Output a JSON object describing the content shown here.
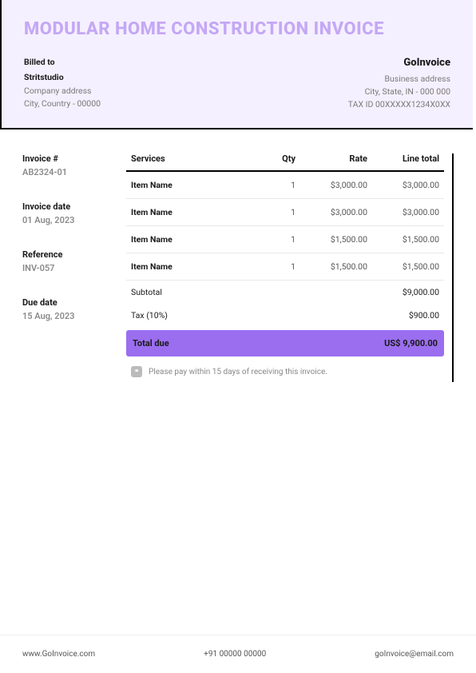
{
  "colors": {
    "header_bg": "#f5f0ff",
    "title_color": "#c4a8f5",
    "accent": "#9b6ef0",
    "text": "#1a1a1a",
    "muted": "#7a7a7a",
    "border": "#000000",
    "row_border": "#e8e8e8"
  },
  "title": "MODULAR HOME CONSTRUCTION INVOICE",
  "billed_to": {
    "label": "Billed to",
    "name": "Stritstudio",
    "address": "Company address",
    "city": "City, Country - 00000"
  },
  "from": {
    "name": "GoInvoice",
    "address": "Business address",
    "city": "City, State, IN - 000 000",
    "tax": "TAX ID 00XXXXX1234X0XX"
  },
  "meta": {
    "invoice_number": {
      "label": "Invoice #",
      "value": "AB2324-01"
    },
    "invoice_date": {
      "label": "Invoice date",
      "value": "01 Aug, 2023"
    },
    "reference": {
      "label": "Reference",
      "value": "INV-057"
    },
    "due_date": {
      "label": "Due date",
      "value": "15 Aug, 2023"
    }
  },
  "table": {
    "headers": {
      "services": "Services",
      "qty": "Qty",
      "rate": "Rate",
      "line_total": "Line total"
    },
    "rows": [
      {
        "service": "Item Name",
        "qty": "1",
        "rate": "$3,000.00",
        "line_total": "$3,000.00"
      },
      {
        "service": "Item Name",
        "qty": "1",
        "rate": "$3,000.00",
        "line_total": "$3,000.00"
      },
      {
        "service": "Item Name",
        "qty": "1",
        "rate": "$1,500.00",
        "line_total": "$1,500.00"
      },
      {
        "service": "Item Name",
        "qty": "1",
        "rate": "$1,500.00",
        "line_total": "$1,500.00"
      }
    ],
    "subtotal": {
      "label": "Subtotal",
      "value": "$9,000.00"
    },
    "tax": {
      "label": "Tax (10%)",
      "value": "$900.00"
    },
    "total_due": {
      "label": "Total due",
      "value": "US$ 9,900.00"
    }
  },
  "note": {
    "icon_glyph": "❝",
    "text": "Please pay within 15 days of receiving this invoice."
  },
  "footer": {
    "website": "www.GoInvoice.com",
    "phone": "+91 00000 00000",
    "email": "goInvoice@email.com"
  }
}
